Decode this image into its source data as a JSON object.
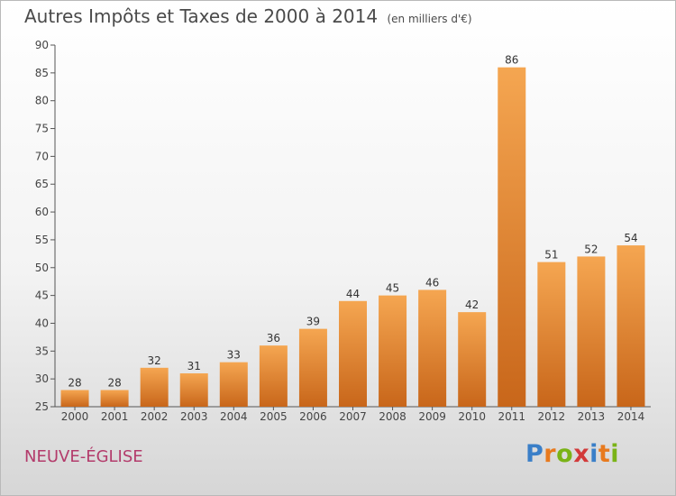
{
  "header": {
    "title": "Autres Impôts et Taxes de 2000 à 2014",
    "unit": "(en milliers d'€)"
  },
  "footer": {
    "place": "NEUVE-ÉGLISE",
    "logo": [
      "P",
      "r",
      "o",
      "x",
      "i",
      "t",
      "i"
    ]
  },
  "colors": {
    "bar_top": "#f5a651",
    "bar_bottom": "#c8661a",
    "place": "#b33b6b",
    "logo_letters": [
      "#3a7fc8",
      "#e87a1e",
      "#7ab317",
      "#d23a3a",
      "#3a7fc8",
      "#e87a1e",
      "#7ab317"
    ]
  },
  "chart_data": {
    "type": "bar",
    "title": "Autres Impôts et Taxes de 2000 à 2014",
    "subtitle": "(en milliers d'€)",
    "xlabel": "",
    "ylabel": "",
    "categories": [
      "2000",
      "2001",
      "2002",
      "2003",
      "2004",
      "2005",
      "2006",
      "2007",
      "2008",
      "2009",
      "2010",
      "2011",
      "2012",
      "2013",
      "2014"
    ],
    "values": [
      28,
      28,
      32,
      31,
      33,
      36,
      39,
      44,
      45,
      46,
      42,
      86,
      51,
      52,
      54
    ],
    "ylim": [
      25,
      90
    ],
    "yticks": [
      25,
      30,
      35,
      40,
      45,
      50,
      55,
      60,
      65,
      70,
      75,
      80,
      85,
      90
    ],
    "grid": false,
    "data_labels": true
  }
}
